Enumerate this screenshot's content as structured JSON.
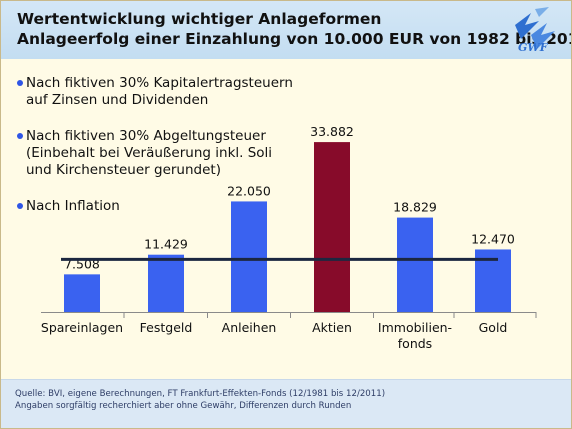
{
  "header": {
    "title_line1": "Wertentwicklung wichtiger Anlageformen",
    "title_line2": "Anlageerfolg einer Einzahlung von 10.000 EUR von 1982 bis 2011",
    "logo_text": "GWF"
  },
  "legend": [
    "Nach fiktiven 30% Kapitalertragsteuern\nauf Zinsen und Dividenden",
    "Nach fiktiven 30% Abgeltungsteuer\n(Einbehalt bei Veräußerung inkl. Soli\nund Kirchensteuer gerundet)",
    "Nach Inflation"
  ],
  "chart_data": {
    "type": "bar",
    "title": "Wertentwicklung wichtiger Anlageformen",
    "subtitle": "Anlageerfolg einer Einzahlung von 10.000 EUR von 1982 bis 2011",
    "categories": [
      "Spareinlagen",
      "Festgeld",
      "Anleihen",
      "Aktien",
      "Immobilien-\nfonds",
      "Gold"
    ],
    "values": [
      7508,
      11429,
      22050,
      33882,
      18829,
      12470
    ],
    "value_labels": [
      "7.508",
      "11.429",
      "22.050",
      "33.882",
      "18.829",
      "12.470"
    ],
    "highlight_index": 3,
    "reference_line_value": 10500,
    "ylim": [
      0,
      34500
    ],
    "grid": false,
    "xlabel": "",
    "ylabel": "",
    "colors": {
      "bar": "#3a62f0",
      "highlight": "#870b2a",
      "reference_line": "#1c2740"
    }
  },
  "footer": {
    "source": "Quelle: BVI, eigene Berechnungen, FT Frankfurt-Effekten-Fonds (12/1981 bis 12/2011)",
    "disclaimer": "Angaben sorgfältig recherchiert aber ohne Gewähr, Differenzen durch Runden"
  }
}
